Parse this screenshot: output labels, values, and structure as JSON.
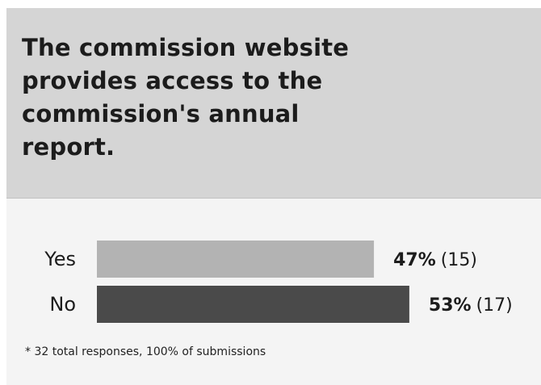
{
  "question": "The commission website provides access to the commission's annual report.",
  "chart_data": {
    "type": "bar",
    "orientation": "horizontal",
    "title": "The commission website provides access to the commission's annual report.",
    "categories": [
      "Yes",
      "No"
    ],
    "values": [
      47,
      53
    ],
    "counts": [
      15,
      17
    ],
    "value_labels": [
      "47%",
      "53%"
    ],
    "count_labels": [
      "(15)",
      "(17)"
    ],
    "unit": "%",
    "xlim": [
      0,
      100
    ],
    "colors": [
      "#b3b3b3",
      "#4a4a4a"
    ],
    "grid": false,
    "legend": "none"
  },
  "footnote": "* 32 total responses, 100% of submissions"
}
